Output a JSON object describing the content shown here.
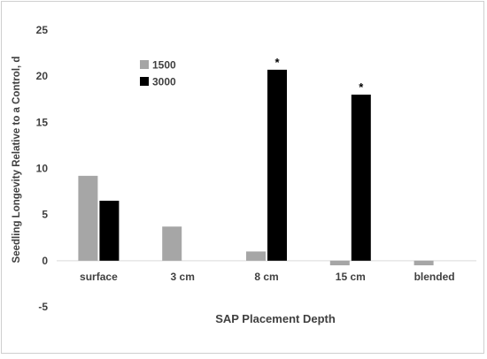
{
  "chart_data": {
    "type": "bar",
    "categories": [
      "surface",
      "3 cm",
      "8 cm",
      "15 cm",
      "blended"
    ],
    "series": [
      {
        "name": "1500",
        "color": "#a6a6a6",
        "values": [
          9.2,
          3.7,
          1.0,
          -0.5,
          -0.5
        ]
      },
      {
        "name": "3000",
        "color": "#000000",
        "values": [
          6.5,
          0,
          20.7,
          18.0,
          0
        ]
      }
    ],
    "annotations": [
      {
        "category": "8 cm",
        "series": "3000",
        "text": "*"
      },
      {
        "category": "15 cm",
        "series": "3000",
        "text": "*"
      }
    ],
    "title": "",
    "xlabel": "SAP Placement Depth",
    "ylabel": "Seedling Longevity Relative to a Control, d",
    "ylim": [
      -5,
      25
    ],
    "yticks": [
      -5,
      0,
      5,
      10,
      15,
      20,
      25
    ],
    "grid": false,
    "legend_position": "top-left"
  }
}
